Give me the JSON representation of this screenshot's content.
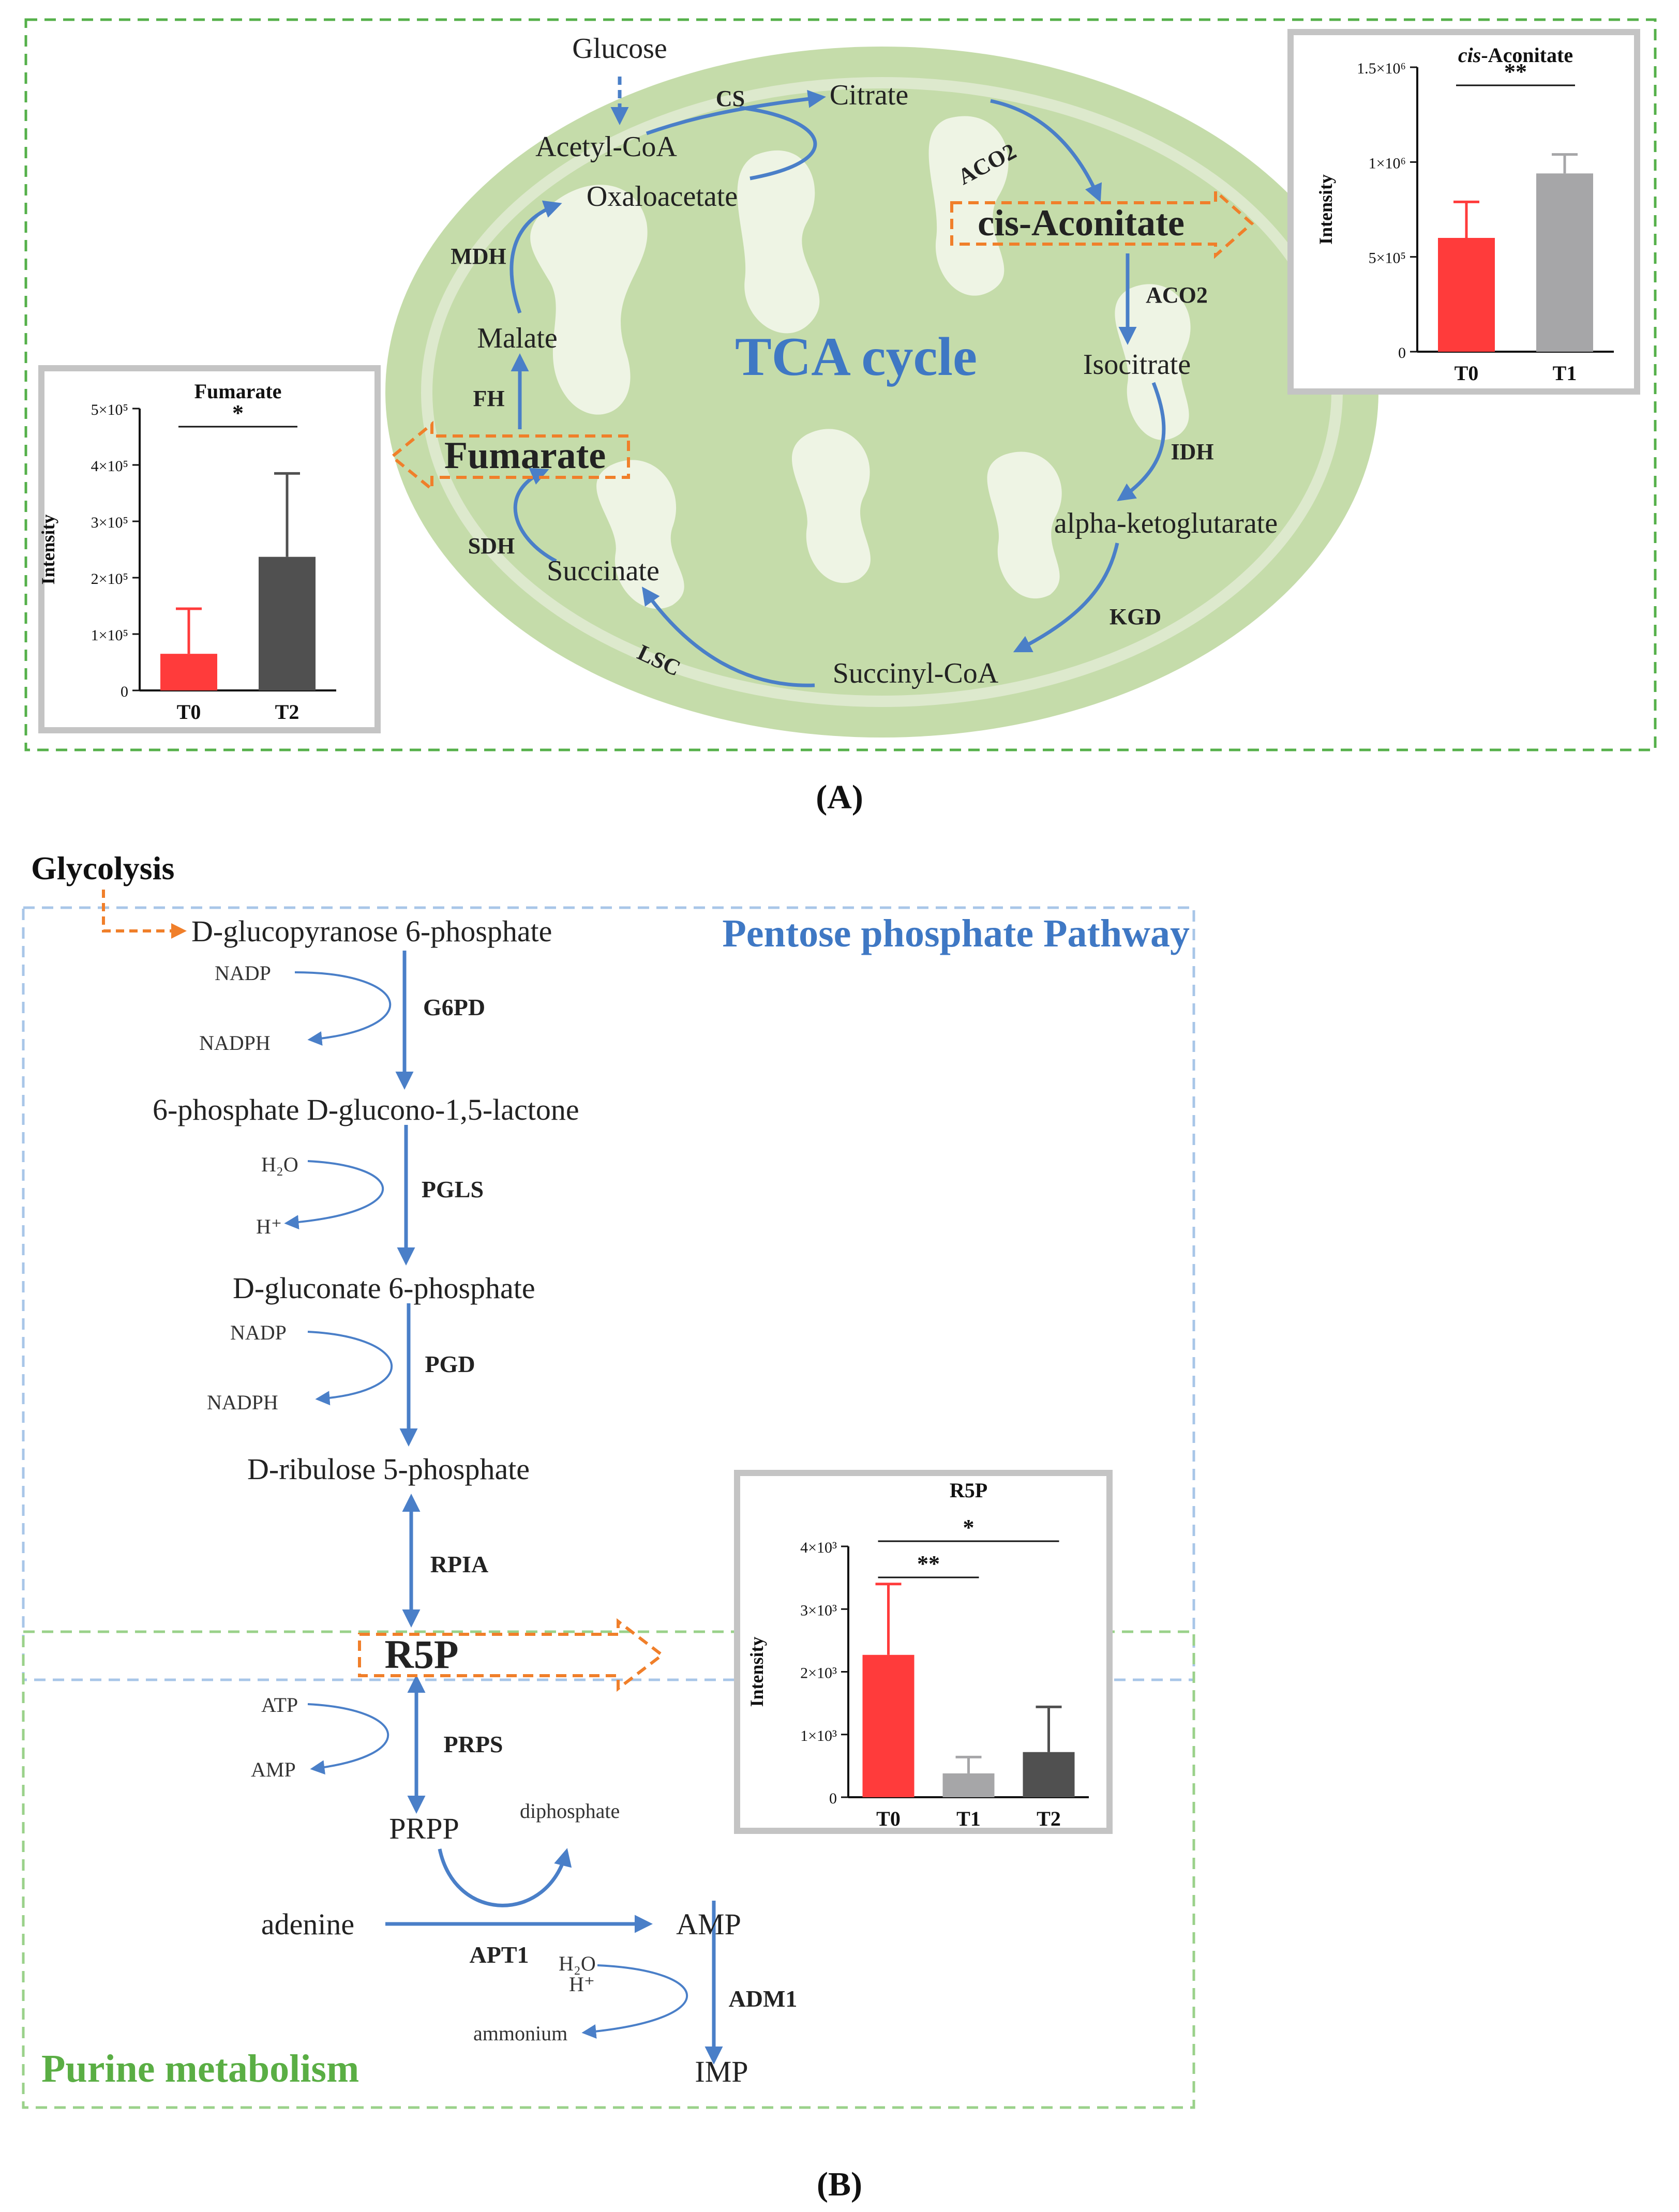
{
  "panel_a": {
    "label": "(A)",
    "title": "TCA cycle",
    "glucose": "Glucose",
    "metabolites": {
      "acetyl_coa": "Acetyl-CoA",
      "citrate": "Citrate",
      "oxaloacetate": "Oxaloacetate",
      "cis_aconitate": "cis-Aconitate",
      "isocitrate": "Isocitrate",
      "malate": "Malate",
      "fumarate": "Fumarate",
      "alpha_kg": "alpha-ketoglutarate",
      "succinate": "Succinate",
      "succinyl_coa": "Succinyl-CoA"
    },
    "enzymes": {
      "cs": "CS",
      "aco2_top": "ACO2",
      "aco2_right": "ACO2",
      "mdh": "MDH",
      "fh": "FH",
      "sdh": "SDH",
      "idh": "IDH",
      "kgd": "KGD",
      "lsc": "LSC"
    }
  },
  "panel_b": {
    "label": "(B)",
    "glycolysis": "Glycolysis",
    "ppp_title": "Pentose phosphate Pathway",
    "purine_title": "Purine metabolism",
    "metabolites": {
      "g6p": "D-glucopyranose 6-phosphate",
      "lactone": "6-phosphate D-glucono-1,5-lactone",
      "gluconate": "D-gluconate 6-phosphate",
      "ribulose": "D-ribulose  5-phosphate",
      "r5p": "R5P",
      "prpp": "PRPP",
      "adenine": "adenine",
      "amp": "AMP",
      "imp": "IMP"
    },
    "cofactors": {
      "nadp1": "NADP",
      "nadph1": "NADPH",
      "h2o1": "H₂O",
      "hplus1": "H⁺",
      "nadp2": "NADP",
      "nadph2": "NADPH",
      "atp": "ATP",
      "amp_side": "AMP",
      "diphosphate": "diphosphate",
      "h2o2": "H₂O",
      "hplus2": "H⁺",
      "ammonium": "ammonium"
    },
    "enzymes": {
      "g6pd": "G6PD",
      "pgls": "PGLS",
      "pgd": "PGD",
      "rpia": "RPIA",
      "prps": "PRPS",
      "apt1": "APT1",
      "adm1": "ADM1"
    }
  },
  "chart_data": [
    {
      "type": "bar",
      "title": "Fumarate",
      "categories": [
        "T0",
        "T2"
      ],
      "values": [
        65000,
        237000
      ],
      "errors": [
        80000,
        148000
      ],
      "colors": [
        "#ff3b3b",
        "#505050"
      ],
      "ylabel": "Intensity",
      "ylim": [
        0,
        500000
      ],
      "ytick_values": [
        0,
        100000,
        200000,
        300000,
        400000,
        500000
      ],
      "yticks": [
        "0",
        "1×10⁵",
        "2×10⁵",
        "3×10⁵",
        "4×10⁵",
        "5×10⁵"
      ],
      "significance": [
        {
          "from": "T0",
          "to": "T2",
          "label": "*"
        }
      ]
    },
    {
      "type": "bar",
      "title": "cis-Aconitate",
      "title_italic_part": "cis",
      "title_rest": "-Aconitate",
      "categories": [
        "T0",
        "T1"
      ],
      "values": [
        600000,
        940000
      ],
      "errors": [
        190000,
        100000
      ],
      "colors": [
        "#ff3b3b",
        "#a6a6a8"
      ],
      "ylabel": "Intensity",
      "ylim": [
        0,
        1500000
      ],
      "ytick_values": [
        0,
        500000,
        1000000,
        1500000
      ],
      "yticks": [
        "0",
        "5×10⁵",
        "1×10⁶",
        "1.5×10⁶"
      ],
      "significance": [
        {
          "from": "T0",
          "to": "T1",
          "label": "**"
        }
      ]
    },
    {
      "type": "bar",
      "title": "R5P",
      "categories": [
        "T0",
        "T1",
        "T2"
      ],
      "values": [
        2270,
        380,
        720
      ],
      "errors": [
        1130,
        260,
        720
      ],
      "colors": [
        "#ff3b3b",
        "#a6a6a8",
        "#505050"
      ],
      "ylabel": "Intensity",
      "ylim": [
        0,
        4000
      ],
      "ytick_values": [
        0,
        1000,
        2000,
        3000,
        4000
      ],
      "yticks": [
        "0",
        "1×10³",
        "2×10³",
        "3×10³",
        "4×10³"
      ],
      "significance": [
        {
          "from": "T0",
          "to": "T2",
          "label": "*"
        },
        {
          "from": "T0",
          "to": "T1",
          "label": "**"
        }
      ]
    }
  ]
}
